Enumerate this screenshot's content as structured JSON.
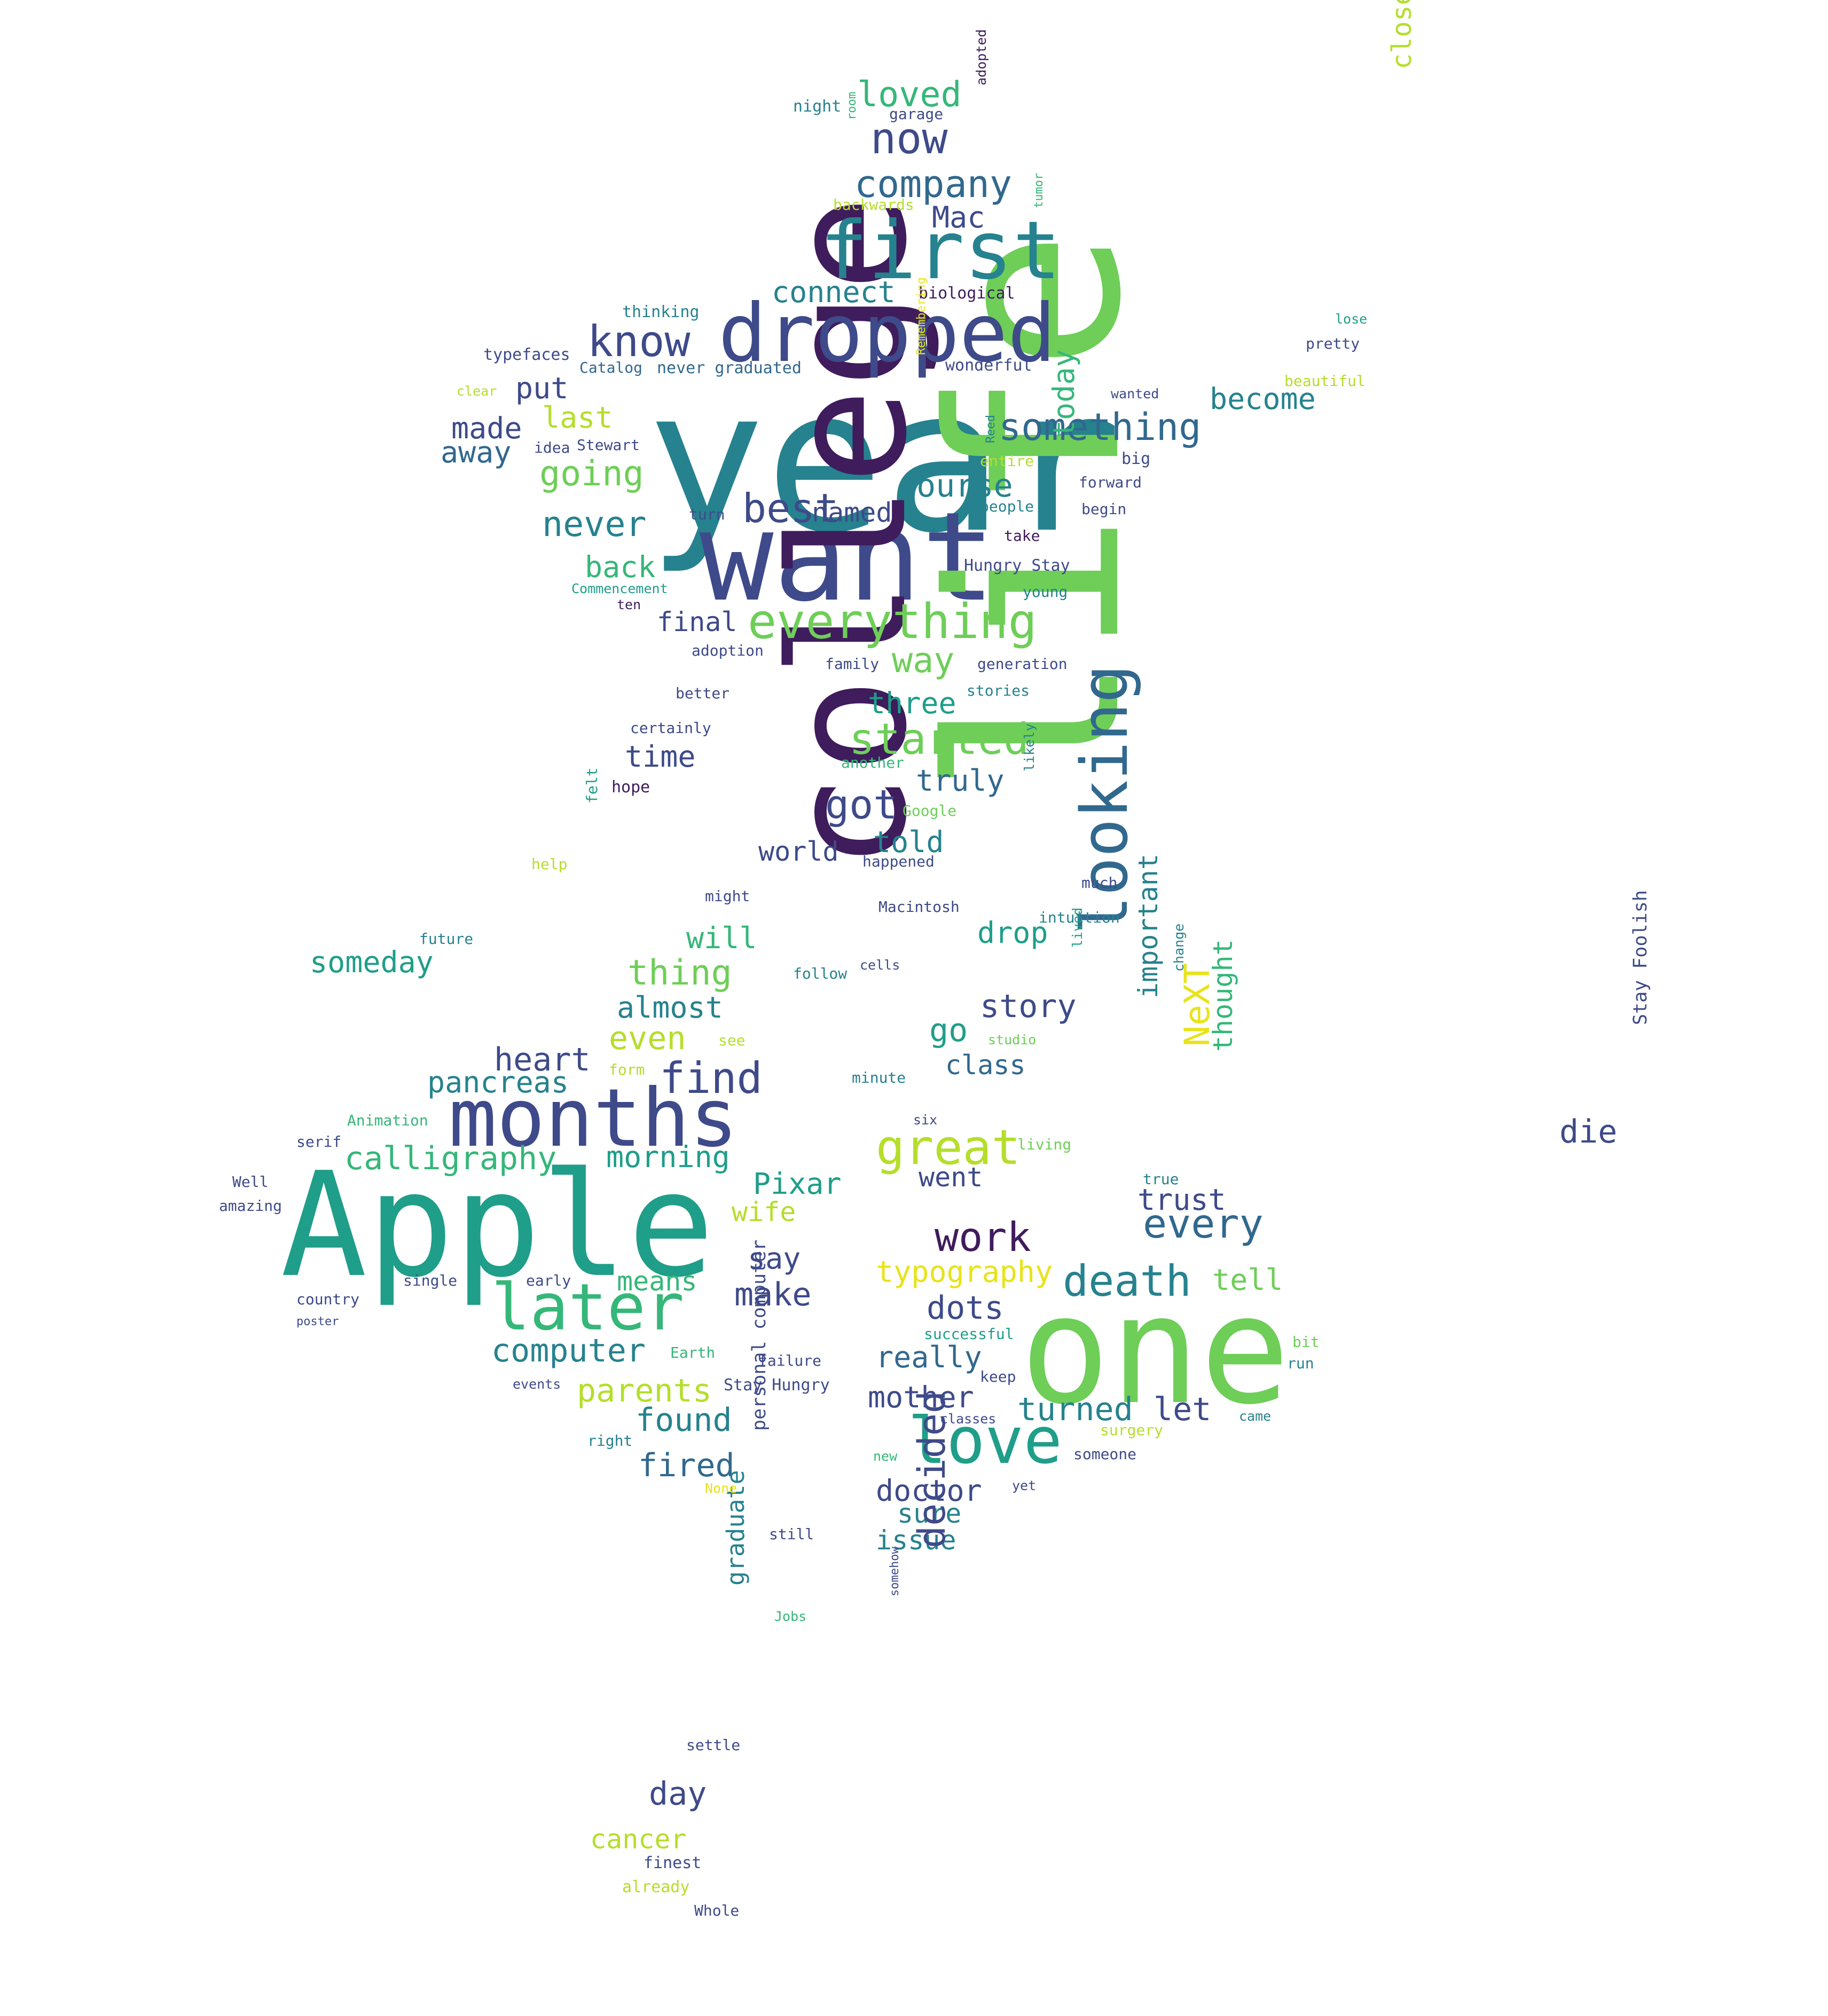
{
  "palette": {
    "dark_purple": "#3f1c5c",
    "indigo": "#3e4a89",
    "blue": "#31688e",
    "teal": "#26828e",
    "sea_green": "#1f9e89",
    "green": "#35b779",
    "lime": "#6ece58",
    "yellow_green": "#b5de2b",
    "yellow": "#e8e31a",
    "background": "#ffffff"
  },
  "words": [
    {
      "text": "year",
      "color": "teal"
    },
    {
      "text": "want",
      "color": "indigo"
    },
    {
      "text": "life",
      "color": "lime"
    },
    {
      "text": "college",
      "color": "dark_purple"
    },
    {
      "text": "Apple",
      "color": "sea_green"
    },
    {
      "text": "one",
      "color": "lime"
    },
    {
      "text": "months",
      "color": "indigo"
    },
    {
      "text": "dropped",
      "color": "indigo"
    },
    {
      "text": "first",
      "color": "teal"
    },
    {
      "text": "looking",
      "color": "blue"
    },
    {
      "text": "later",
      "color": "green"
    },
    {
      "text": "love",
      "color": "sea_green"
    },
    {
      "text": "everything",
      "color": "lime"
    },
    {
      "text": "great",
      "color": "yellow_green"
    },
    {
      "text": "death",
      "color": "teal"
    },
    {
      "text": "now",
      "color": "indigo"
    },
    {
      "text": "company",
      "color": "blue"
    },
    {
      "text": "know",
      "color": "indigo"
    },
    {
      "text": "something",
      "color": "blue"
    },
    {
      "text": "started",
      "color": "lime"
    },
    {
      "text": "find",
      "color": "indigo"
    },
    {
      "text": "best",
      "color": "indigo"
    },
    {
      "text": "work",
      "color": "dark_purple"
    },
    {
      "text": "every",
      "color": "blue"
    },
    {
      "text": "loved",
      "color": "green"
    },
    {
      "text": "Mac",
      "color": "indigo"
    },
    {
      "text": "connect",
      "color": "teal"
    },
    {
      "text": "put",
      "color": "indigo"
    },
    {
      "text": "last",
      "color": "yellow_green"
    },
    {
      "text": "made",
      "color": "indigo"
    },
    {
      "text": "away",
      "color": "blue"
    },
    {
      "text": "going",
      "color": "lime"
    },
    {
      "text": "course",
      "color": "teal"
    },
    {
      "text": "named",
      "color": "indigo"
    },
    {
      "text": "never",
      "color": "teal"
    },
    {
      "text": "back",
      "color": "green"
    },
    {
      "text": "today",
      "color": "green"
    },
    {
      "text": "become",
      "color": "teal"
    },
    {
      "text": "closest",
      "color": "yellow_green"
    },
    {
      "text": "final",
      "color": "indigo"
    },
    {
      "text": "way",
      "color": "lime"
    },
    {
      "text": "three",
      "color": "sea_green"
    },
    {
      "text": "time",
      "color": "indigo"
    },
    {
      "text": "truly",
      "color": "blue"
    },
    {
      "text": "got",
      "color": "indigo"
    },
    {
      "text": "told",
      "color": "teal"
    },
    {
      "text": "world",
      "color": "indigo"
    },
    {
      "text": "will",
      "color": "green"
    },
    {
      "text": "drop",
      "color": "sea_green"
    },
    {
      "text": "someday",
      "color": "sea_green"
    },
    {
      "text": "thing",
      "color": "lime"
    },
    {
      "text": "almost",
      "color": "teal"
    },
    {
      "text": "story",
      "color": "indigo"
    },
    {
      "text": "go",
      "color": "sea_green"
    },
    {
      "text": "even",
      "color": "yellow_green"
    },
    {
      "text": "heart",
      "color": "indigo"
    },
    {
      "text": "class",
      "color": "blue"
    },
    {
      "text": "pancreas",
      "color": "teal"
    },
    {
      "text": "calligraphy",
      "color": "green"
    },
    {
      "text": "morning",
      "color": "sea_green"
    },
    {
      "text": "important",
      "color": "teal"
    },
    {
      "text": "NeXT",
      "color": "yellow"
    },
    {
      "text": "thought",
      "color": "green"
    },
    {
      "text": "die",
      "color": "indigo"
    },
    {
      "text": "Stay Foolish",
      "color": "indigo"
    },
    {
      "text": "Pixar",
      "color": "sea_green"
    },
    {
      "text": "went",
      "color": "indigo"
    },
    {
      "text": "trust",
      "color": "indigo"
    },
    {
      "text": "wife",
      "color": "yellow_green"
    },
    {
      "text": "say",
      "color": "indigo"
    },
    {
      "text": "typography",
      "color": "yellow"
    },
    {
      "text": "tell",
      "color": "lime"
    },
    {
      "text": "means",
      "color": "green"
    },
    {
      "text": "make",
      "color": "indigo"
    },
    {
      "text": "dots",
      "color": "indigo"
    },
    {
      "text": "computer",
      "color": "teal"
    },
    {
      "text": "really",
      "color": "blue"
    },
    {
      "text": "parents",
      "color": "yellow_green"
    },
    {
      "text": "mother",
      "color": "indigo"
    },
    {
      "text": "turned",
      "color": "teal"
    },
    {
      "text": "let",
      "color": "indigo"
    },
    {
      "text": "found",
      "color": "teal"
    },
    {
      "text": "fired",
      "color": "blue"
    },
    {
      "text": "doctor",
      "color": "indigo"
    },
    {
      "text": "sure",
      "color": "teal"
    },
    {
      "text": "issue",
      "color": "teal"
    },
    {
      "text": "decided",
      "color": "indigo"
    },
    {
      "text": "graduate",
      "color": "teal"
    },
    {
      "text": "personal computer",
      "color": "indigo"
    },
    {
      "text": "day",
      "color": "indigo"
    },
    {
      "text": "cancer",
      "color": "yellow_green"
    },
    {
      "text": "finest",
      "color": "indigo"
    },
    {
      "text": "already",
      "color": "yellow_green"
    },
    {
      "text": "Whole",
      "color": "indigo"
    },
    {
      "text": "settle",
      "color": "indigo"
    },
    {
      "text": "night",
      "color": "teal"
    },
    {
      "text": "garage",
      "color": "indigo"
    },
    {
      "text": "adopted",
      "color": "dark_purple"
    },
    {
      "text": "backwards",
      "color": "yellow_green"
    },
    {
      "text": "biological",
      "color": "dark_purple"
    },
    {
      "text": "thinking",
      "color": "teal"
    },
    {
      "text": "typefaces",
      "color": "indigo"
    },
    {
      "text": "Catalog",
      "color": "blue"
    },
    {
      "text": "never graduated",
      "color": "blue"
    },
    {
      "text": "wonderful",
      "color": "indigo"
    },
    {
      "text": "idea",
      "color": "indigo"
    },
    {
      "text": "Stewart",
      "color": "indigo"
    },
    {
      "text": "entire",
      "color": "yellow_green"
    },
    {
      "text": "big",
      "color": "indigo"
    },
    {
      "text": "forward",
      "color": "indigo"
    },
    {
      "text": "people",
      "color": "teal"
    },
    {
      "text": "begin",
      "color": "indigo"
    },
    {
      "text": "take",
      "color": "dark_purple"
    },
    {
      "text": "Hungry Stay",
      "color": "indigo"
    },
    {
      "text": "young",
      "color": "teal"
    },
    {
      "text": "Commencement",
      "color": "sea_green"
    },
    {
      "text": "ten",
      "color": "dark_purple"
    },
    {
      "text": "adoption",
      "color": "indigo"
    },
    {
      "text": "family",
      "color": "indigo"
    },
    {
      "text": "generation",
      "color": "indigo"
    },
    {
      "text": "stories",
      "color": "teal"
    },
    {
      "text": "better",
      "color": "indigo"
    },
    {
      "text": "certainly",
      "color": "indigo"
    },
    {
      "text": "another",
      "color": "green"
    },
    {
      "text": "hope",
      "color": "dark_purple"
    },
    {
      "text": "Google",
      "color": "lime"
    },
    {
      "text": "likely",
      "color": "teal"
    },
    {
      "text": "felt",
      "color": "sea_green"
    },
    {
      "text": "happened",
      "color": "indigo"
    },
    {
      "text": "much",
      "color": "indigo"
    },
    {
      "text": "help",
      "color": "yellow_green"
    },
    {
      "text": "might",
      "color": "indigo"
    },
    {
      "text": "Macintosh",
      "color": "indigo"
    },
    {
      "text": "intuition",
      "color": "teal"
    },
    {
      "text": "future",
      "color": "teal"
    },
    {
      "text": "follow",
      "color": "teal"
    },
    {
      "text": "cells",
      "color": "indigo"
    },
    {
      "text": "lived",
      "color": "sea_green"
    },
    {
      "text": "change",
      "color": "teal"
    },
    {
      "text": "see",
      "color": "yellow_green"
    },
    {
      "text": "studio",
      "color": "lime"
    },
    {
      "text": "form",
      "color": "yellow_green"
    },
    {
      "text": "minute",
      "color": "teal"
    },
    {
      "text": "Animation",
      "color": "green"
    },
    {
      "text": "serif",
      "color": "indigo"
    },
    {
      "text": "six",
      "color": "indigo"
    },
    {
      "text": "living",
      "color": "lime"
    },
    {
      "text": "Well",
      "color": "indigo"
    },
    {
      "text": "true",
      "color": "teal"
    },
    {
      "text": "amazing",
      "color": "indigo"
    },
    {
      "text": "country",
      "color": "indigo"
    },
    {
      "text": "single",
      "color": "indigo"
    },
    {
      "text": "early",
      "color": "indigo"
    },
    {
      "text": "successful",
      "color": "sea_green"
    },
    {
      "text": "failure",
      "color": "indigo"
    },
    {
      "text": "Earth",
      "color": "green"
    },
    {
      "text": "keep",
      "color": "indigo"
    },
    {
      "text": "bit",
      "color": "lime"
    },
    {
      "text": "run",
      "color": "teal"
    },
    {
      "text": "events",
      "color": "indigo"
    },
    {
      "text": "Stay Hungry",
      "color": "indigo"
    },
    {
      "text": "classes",
      "color": "indigo"
    },
    {
      "text": "surgery",
      "color": "yellow_green"
    },
    {
      "text": "came",
      "color": "teal"
    },
    {
      "text": "right",
      "color": "teal"
    },
    {
      "text": "new",
      "color": "green"
    },
    {
      "text": "someone",
      "color": "indigo"
    },
    {
      "text": "yet",
      "color": "indigo"
    },
    {
      "text": "None",
      "color": "yellow"
    },
    {
      "text": "still",
      "color": "indigo"
    },
    {
      "text": "Jobs",
      "color": "green"
    },
    {
      "text": "somehow",
      "color": "indigo"
    },
    {
      "text": "poster",
      "color": "indigo"
    },
    {
      "text": "lose",
      "color": "sea_green"
    },
    {
      "text": "pretty",
      "color": "indigo"
    },
    {
      "text": "beautiful",
      "color": "yellow_green"
    },
    {
      "text": "wanted",
      "color": "indigo"
    },
    {
      "text": "clear",
      "color": "yellow_green"
    },
    {
      "text": "turn",
      "color": "indigo"
    },
    {
      "text": "Remembering",
      "color": "yellow"
    },
    {
      "text": "Reed",
      "color": "teal"
    },
    {
      "text": "tumor",
      "color": "green"
    },
    {
      "text": "room",
      "color": "green"
    }
  ]
}
